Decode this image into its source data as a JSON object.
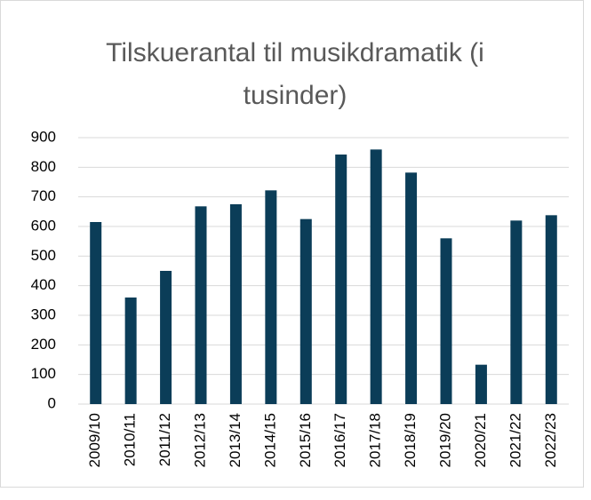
{
  "chart_data": {
    "type": "bar",
    "title": "Tilskuerantal til musikdramatik (i tusinder)",
    "categories": [
      "2009/10",
      "2010/11",
      "2011/12",
      "2012/13",
      "2013/14",
      "2014/15",
      "2015/16",
      "2016/17",
      "2017/18",
      "2018/19",
      "2019/20",
      "2020/21",
      "2021/22",
      "2022/23"
    ],
    "values": [
      615,
      360,
      450,
      668,
      675,
      722,
      625,
      843,
      860,
      782,
      560,
      133,
      620,
      638
    ],
    "color": "#0b3d58",
    "ylim": [
      0,
      900
    ],
    "yticks": [
      0,
      100,
      200,
      300,
      400,
      500,
      600,
      700,
      800,
      900
    ],
    "grid": true
  }
}
